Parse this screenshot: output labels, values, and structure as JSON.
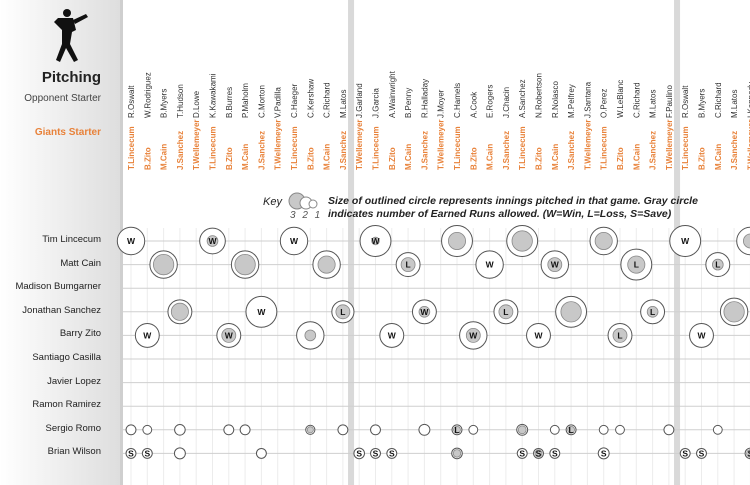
{
  "header": {
    "title": "Pitching",
    "opponent_label": "Opponent Starter",
    "giants_label": "Giants Starter"
  },
  "key": {
    "title": "Key",
    "scale_numbers": "3 2 1",
    "description": "Size of outlined circle represents innings pitched in that game. Gray circle indicates number of Earned Runs allowed. (W=Win, L=Loss, S=Save)"
  },
  "colors": {
    "accent": "#e8823a",
    "circle_fill": "#c8c8c8",
    "separator": "#d9d9d9"
  },
  "chart_data": {
    "type": "scatter",
    "games": [
      {
        "opp": "R.Oswalt",
        "gs": "T.Lincecum"
      },
      {
        "opp": "W.Rodriguez",
        "gs": "B.Zito"
      },
      {
        "opp": "B.Myers",
        "gs": "M.Cain"
      },
      {
        "opp": "T.Hudson",
        "gs": "J.Sanchez"
      },
      {
        "opp": "D.Lowe",
        "gs": "T.Wellemeyer"
      },
      {
        "opp": "K.Kawakami",
        "gs": "T.Lincecum"
      },
      {
        "opp": "B.Burres",
        "gs": "B.Zito"
      },
      {
        "opp": "P.Maholm",
        "gs": "M.Cain"
      },
      {
        "opp": "C.Morton",
        "gs": "J.Sanchez"
      },
      {
        "opp": "V.Padilla",
        "gs": "T.Wellemeyer"
      },
      {
        "opp": "C.Haeger",
        "gs": "T.Lincecum"
      },
      {
        "opp": "C.Kershaw",
        "gs": "B.Zito"
      },
      {
        "opp": "C.Richard",
        "gs": "M.Cain"
      },
      {
        "opp": "M.Latos",
        "gs": "J.Sanchez"
      },
      {
        "opp": "J.Garland",
        "gs": "T.Wellemeyer"
      },
      {
        "opp": "J.Garcia",
        "gs": "T.Lincecum"
      },
      {
        "opp": "A.Wainwright",
        "gs": "B.Zito"
      },
      {
        "opp": "B.Penny",
        "gs": "M.Cain"
      },
      {
        "opp": "R.Halladay",
        "gs": "J.Sanchez"
      },
      {
        "opp": "J.Moyer",
        "gs": "T.Wellemeyer"
      },
      {
        "opp": "C.Hamels",
        "gs": "T.Lincecum"
      },
      {
        "opp": "A.Cook",
        "gs": "B.Zito"
      },
      {
        "opp": "E.Rogers",
        "gs": "M.Cain"
      },
      {
        "opp": "J.Chacin",
        "gs": "J.Sanchez"
      },
      {
        "opp": "A.Sanchez",
        "gs": "T.Lincecum"
      },
      {
        "opp": "N.Robertson",
        "gs": "B.Zito"
      },
      {
        "opp": "R.Nolasco",
        "gs": "M.Cain"
      },
      {
        "opp": "M.Pelfrey",
        "gs": "J.Sanchez"
      },
      {
        "opp": "J.Santana",
        "gs": "T.Wellemeyer"
      },
      {
        "opp": "O.Perez",
        "gs": "T.Lincecum"
      },
      {
        "opp": "W.LeBlanc",
        "gs": "B.Zito"
      },
      {
        "opp": "C.Richard",
        "gs": "M.Cain"
      },
      {
        "opp": "M.Latos",
        "gs": "J.Sanchez"
      },
      {
        "opp": "F.Paulino",
        "gs": "T.Wellemeyer"
      },
      {
        "opp": "R.Oswalt",
        "gs": "T.Lincecum"
      },
      {
        "opp": "B.Myers",
        "gs": "B.Zito"
      },
      {
        "opp": "C.Richard",
        "gs": "M.Cain"
      },
      {
        "opp": "M.Latos",
        "gs": "J.Sanchez"
      },
      {
        "opp": "I.Kennedy",
        "gs": "T.Wellemeyer"
      }
    ],
    "players": [
      "Tim Lincecum",
      "Matt Cain",
      "Madison Bumgarner",
      "Jonathan Sanchez",
      "Barry Zito",
      "Santiago Casilla",
      "Javier Lopez",
      "Ramon Ramirez",
      "Sergio Romo",
      "Brian Wilson"
    ],
    "appearances": [
      {
        "player": 0,
        "game": 0,
        "ip": 6,
        "er": 0,
        "dec": "W"
      },
      {
        "player": 0,
        "game": 5,
        "ip": 5.5,
        "er": 2,
        "dec": "W"
      },
      {
        "player": 0,
        "game": 10,
        "ip": 6,
        "er": 0,
        "dec": "W"
      },
      {
        "player": 0,
        "game": 15,
        "ip": 7,
        "er": 1,
        "dec": "W"
      },
      {
        "player": 0,
        "game": 20,
        "ip": 7,
        "er": 4,
        "dec": ""
      },
      {
        "player": 0,
        "game": 24,
        "ip": 7,
        "er": 5,
        "dec": ""
      },
      {
        "player": 0,
        "game": 29,
        "ip": 6,
        "er": 4,
        "dec": ""
      },
      {
        "player": 0,
        "game": 34,
        "ip": 7,
        "er": 0,
        "dec": "W"
      },
      {
        "player": 0,
        "game": 38,
        "ip": 6,
        "er": 3,
        "dec": ""
      },
      {
        "player": 1,
        "game": 2,
        "ip": 6,
        "er": 5,
        "dec": ""
      },
      {
        "player": 1,
        "game": 7,
        "ip": 6,
        "er": 5,
        "dec": ""
      },
      {
        "player": 1,
        "game": 12,
        "ip": 6,
        "er": 4,
        "dec": ""
      },
      {
        "player": 1,
        "game": 17,
        "ip": 5,
        "er": 3,
        "dec": "L"
      },
      {
        "player": 1,
        "game": 22,
        "ip": 6,
        "er": 0,
        "dec": "W"
      },
      {
        "player": 1,
        "game": 26,
        "ip": 6,
        "er": 3,
        "dec": "W"
      },
      {
        "player": 1,
        "game": 31,
        "ip": 7,
        "er": 4,
        "dec": "L"
      },
      {
        "player": 1,
        "game": 36,
        "ip": 5,
        "er": 2,
        "dec": "L"
      },
      {
        "player": 3,
        "game": 3,
        "ip": 5,
        "er": 4,
        "dec": ""
      },
      {
        "player": 3,
        "game": 8,
        "ip": 7,
        "er": 0,
        "dec": "W"
      },
      {
        "player": 3,
        "game": 13,
        "ip": 4.5,
        "er": 3,
        "dec": "L"
      },
      {
        "player": 3,
        "game": 18,
        "ip": 5,
        "er": 2,
        "dec": "W"
      },
      {
        "player": 3,
        "game": 23,
        "ip": 5,
        "er": 3,
        "dec": "L"
      },
      {
        "player": 3,
        "game": 27,
        "ip": 7,
        "er": 5,
        "dec": ""
      },
      {
        "player": 3,
        "game": 32,
        "ip": 5,
        "er": 2,
        "dec": "L"
      },
      {
        "player": 3,
        "game": 37,
        "ip": 6,
        "er": 5,
        "dec": ""
      },
      {
        "player": 4,
        "game": 1,
        "ip": 5,
        "er": 0,
        "dec": "W"
      },
      {
        "player": 4,
        "game": 6,
        "ip": 5,
        "er": 3,
        "dec": "W"
      },
      {
        "player": 4,
        "game": 11,
        "ip": 6,
        "er": 2,
        "dec": ""
      },
      {
        "player": 4,
        "game": 16,
        "ip": 5,
        "er": 0,
        "dec": "W"
      },
      {
        "player": 4,
        "game": 21,
        "ip": 6,
        "er": 3,
        "dec": "W"
      },
      {
        "player": 4,
        "game": 25,
        "ip": 5,
        "er": 0,
        "dec": "W"
      },
      {
        "player": 4,
        "game": 30,
        "ip": 5,
        "er": 3,
        "dec": "L"
      },
      {
        "player": 4,
        "game": 35,
        "ip": 5,
        "er": 0,
        "dec": "W"
      },
      {
        "player": 8,
        "game": 0,
        "ip": 1,
        "er": 0,
        "dec": ""
      },
      {
        "player": 8,
        "game": 1,
        "ip": 0.7,
        "er": 0,
        "dec": ""
      },
      {
        "player": 8,
        "game": 3,
        "ip": 1.2,
        "er": 0,
        "dec": ""
      },
      {
        "player": 8,
        "game": 6,
        "ip": 1,
        "er": 0,
        "dec": ""
      },
      {
        "player": 8,
        "game": 7,
        "ip": 1,
        "er": 0,
        "dec": ""
      },
      {
        "player": 8,
        "game": 11,
        "ip": 0.8,
        "er": 1,
        "dec": ""
      },
      {
        "player": 8,
        "game": 13,
        "ip": 1,
        "er": 0,
        "dec": ""
      },
      {
        "player": 8,
        "game": 15,
        "ip": 1,
        "er": 0,
        "dec": ""
      },
      {
        "player": 8,
        "game": 18,
        "ip": 1.3,
        "er": 0,
        "dec": ""
      },
      {
        "player": 8,
        "game": 20,
        "ip": 1,
        "er": 1,
        "dec": "L"
      },
      {
        "player": 8,
        "game": 21,
        "ip": 0.7,
        "er": 0,
        "dec": ""
      },
      {
        "player": 8,
        "game": 24,
        "ip": 1.3,
        "er": 2,
        "dec": ""
      },
      {
        "player": 8,
        "game": 26,
        "ip": 0.7,
        "er": 0,
        "dec": ""
      },
      {
        "player": 8,
        "game": 27,
        "ip": 1,
        "er": 2,
        "dec": "L"
      },
      {
        "player": 8,
        "game": 29,
        "ip": 0.7,
        "er": 0,
        "dec": ""
      },
      {
        "player": 8,
        "game": 30,
        "ip": 0.7,
        "er": 0,
        "dec": ""
      },
      {
        "player": 8,
        "game": 33,
        "ip": 1,
        "er": 0,
        "dec": ""
      },
      {
        "player": 8,
        "game": 36,
        "ip": 0.7,
        "er": 0,
        "dec": ""
      },
      {
        "player": 9,
        "game": 0,
        "ip": 1,
        "er": 0,
        "dec": "S"
      },
      {
        "player": 9,
        "game": 1,
        "ip": 1,
        "er": 0,
        "dec": "S"
      },
      {
        "player": 9,
        "game": 3,
        "ip": 1.3,
        "er": 0,
        "dec": ""
      },
      {
        "player": 9,
        "game": 8,
        "ip": 1,
        "er": 0,
        "dec": ""
      },
      {
        "player": 9,
        "game": 14,
        "ip": 1.2,
        "er": 0,
        "dec": "S"
      },
      {
        "player": 9,
        "game": 15,
        "ip": 1,
        "er": 0,
        "dec": "S"
      },
      {
        "player": 9,
        "game": 16,
        "ip": 1,
        "er": 0,
        "dec": "S"
      },
      {
        "player": 9,
        "game": 20,
        "ip": 1.2,
        "er": 1,
        "dec": ""
      },
      {
        "player": 9,
        "game": 24,
        "ip": 1,
        "er": 0,
        "dec": "S"
      },
      {
        "player": 9,
        "game": 25,
        "ip": 1,
        "er": 1,
        "dec": "S"
      },
      {
        "player": 9,
        "game": 26,
        "ip": 1,
        "er": 0,
        "dec": "S"
      },
      {
        "player": 9,
        "game": 29,
        "ip": 1.3,
        "er": 0,
        "dec": "S"
      },
      {
        "player": 9,
        "game": 34,
        "ip": 1,
        "er": 0,
        "dec": "S"
      },
      {
        "player": 9,
        "game": 35,
        "ip": 1,
        "er": 0,
        "dec": "S"
      },
      {
        "player": 9,
        "game": 38,
        "ip": 1.2,
        "er": 1,
        "dec": "S"
      }
    ]
  }
}
